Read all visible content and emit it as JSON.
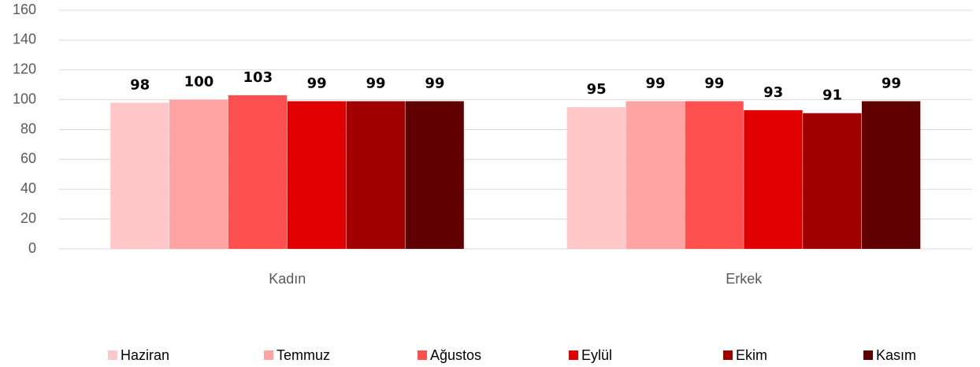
{
  "chart_data": {
    "type": "bar",
    "categories": [
      "Kadın",
      "Erkek"
    ],
    "series": [
      {
        "name": "Haziran",
        "color": "#ffc7c7",
        "values": [
          98,
          95
        ]
      },
      {
        "name": "Temmuz",
        "color": "#ffa3a3",
        "values": [
          100,
          99
        ]
      },
      {
        "name": "Ağustos",
        "color": "#ff5050",
        "values": [
          103,
          99
        ]
      },
      {
        "name": "Eylül",
        "color": "#e00000",
        "values": [
          99,
          93
        ]
      },
      {
        "name": "Ekim",
        "color": "#a00000",
        "values": [
          99,
          91
        ]
      },
      {
        "name": "Kasım",
        "color": "#600000",
        "values": [
          99,
          99
        ]
      }
    ],
    "ylim": [
      0,
      160
    ],
    "yticks": [
      0,
      20,
      40,
      60,
      80,
      100,
      120,
      140,
      160
    ],
    "grid": true,
    "legend": "bottom"
  }
}
